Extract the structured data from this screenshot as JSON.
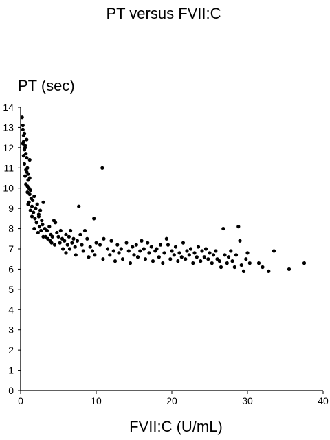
{
  "chart_data": {
    "type": "scatter",
    "title": "PT versus FVII:C",
    "xlabel": "FVII:C (U/mL)",
    "ylabel": "PT (sec)",
    "xlim": [
      0,
      40
    ],
    "ylim": [
      0,
      14
    ],
    "x_ticks": [
      "0",
      "10",
      "20",
      "30",
      "40"
    ],
    "y_ticks": [
      "0",
      "1",
      "2",
      "3",
      "4",
      "5",
      "6",
      "7",
      "8",
      "9",
      "10",
      "11",
      "12",
      "13",
      "14"
    ],
    "grid": false,
    "marker_color": "#000000",
    "series": [
      {
        "points": [
          [
            0.2,
            13.5
          ],
          [
            0.3,
            13.1
          ],
          [
            0.3,
            12.9
          ],
          [
            0.4,
            12.6
          ],
          [
            0.5,
            12.7
          ],
          [
            0.4,
            12.3
          ],
          [
            0.6,
            12.1
          ],
          [
            0.5,
            11.9
          ],
          [
            0.7,
            11.7
          ],
          [
            0.8,
            11.5
          ],
          [
            0.5,
            11.2
          ],
          [
            0.9,
            11.0
          ],
          [
            0.8,
            10.8
          ],
          [
            0.6,
            10.6
          ],
          [
            1.0,
            10.4
          ],
          [
            0.7,
            10.2
          ],
          [
            1.1,
            10.0
          ],
          [
            0.9,
            9.8
          ],
          [
            1.2,
            9.7
          ],
          [
            1.4,
            9.5
          ],
          [
            0.6,
            12.0
          ],
          [
            0.3,
            12.2
          ],
          [
            0.4,
            11.6
          ],
          [
            0.7,
            10.9
          ],
          [
            1.0,
            10.7
          ],
          [
            1.2,
            10.5
          ],
          [
            0.9,
            10.1
          ],
          [
            1.3,
            9.9
          ],
          [
            1.1,
            9.3
          ],
          [
            1.5,
            9.1
          ],
          [
            1.0,
            9.2
          ],
          [
            1.6,
            9.4
          ],
          [
            1.8,
            9.6
          ],
          [
            1.3,
            8.9
          ],
          [
            1.7,
            8.8
          ],
          [
            2.0,
            9.0
          ],
          [
            1.5,
            8.6
          ],
          [
            2.2,
            9.2
          ],
          [
            1.9,
            8.5
          ],
          [
            2.4,
            8.7
          ],
          [
            2.6,
            8.9
          ],
          [
            2.1,
            8.3
          ],
          [
            2.8,
            8.4
          ],
          [
            3.0,
            9.3
          ],
          [
            2.5,
            8.1
          ],
          [
            1.8,
            8.0
          ],
          [
            2.3,
            7.8
          ],
          [
            2.9,
            8.2
          ],
          [
            3.2,
            8.0
          ],
          [
            3.5,
            7.9
          ],
          [
            3.8,
            8.1
          ],
          [
            4.0,
            7.7
          ],
          [
            3.3,
            7.6
          ],
          [
            2.7,
            7.9
          ],
          [
            4.2,
            7.6
          ],
          [
            4.4,
            8.4
          ],
          [
            4.6,
            8.3
          ],
          [
            3.6,
            7.5
          ],
          [
            3.9,
            7.4
          ],
          [
            4.1,
            7.3
          ],
          [
            4.8,
            7.8
          ],
          [
            5.0,
            7.6
          ],
          [
            4.5,
            7.2
          ],
          [
            5.3,
            7.9
          ],
          [
            5.5,
            7.5
          ],
          [
            5.2,
            7.3
          ],
          [
            5.8,
            7.4
          ],
          [
            6.0,
            7.7
          ],
          [
            6.2,
            7.2
          ],
          [
            5.6,
            7.0
          ],
          [
            6.4,
            7.6
          ],
          [
            6.6,
            7.9
          ],
          [
            6.8,
            7.3
          ],
          [
            7.0,
            7.5
          ],
          [
            6.5,
            7.0
          ],
          [
            7.2,
            7.1
          ],
          [
            6.0,
            6.8
          ],
          [
            7.5,
            7.4
          ],
          [
            7.7,
            9.1
          ],
          [
            7.9,
            7.7
          ],
          [
            8.1,
            7.2
          ],
          [
            8.3,
            6.9
          ],
          [
            7.3,
            6.7
          ],
          [
            8.5,
            7.9
          ],
          [
            8.8,
            7.5
          ],
          [
            9.0,
            6.6
          ],
          [
            9.2,
            7.1
          ],
          [
            9.5,
            6.9
          ],
          [
            9.7,
            8.5
          ],
          [
            10.0,
            7.3
          ],
          [
            9.8,
            6.7
          ],
          [
            10.5,
            7.2
          ],
          [
            10.8,
            11.0
          ],
          [
            10.9,
            6.5
          ],
          [
            11.0,
            7.5
          ],
          [
            11.5,
            7.0
          ],
          [
            11.8,
            6.7
          ],
          [
            12.0,
            7.4
          ],
          [
            12.3,
            6.9
          ],
          [
            12.5,
            6.4
          ],
          [
            12.8,
            7.2
          ],
          [
            13.0,
            6.8
          ],
          [
            13.3,
            7.0
          ],
          [
            13.5,
            6.5
          ],
          [
            14.0,
            7.3
          ],
          [
            14.3,
            6.9
          ],
          [
            14.5,
            6.3
          ],
          [
            14.8,
            7.1
          ],
          [
            15.0,
            6.7
          ],
          [
            15.3,
            7.2
          ],
          [
            15.5,
            6.6
          ],
          [
            15.8,
            6.9
          ],
          [
            16.0,
            7.4
          ],
          [
            16.3,
            7.0
          ],
          [
            16.5,
            6.5
          ],
          [
            16.8,
            7.3
          ],
          [
            17.0,
            6.8
          ],
          [
            17.3,
            7.1
          ],
          [
            17.5,
            6.4
          ],
          [
            17.8,
            6.9
          ],
          [
            18.0,
            7.0
          ],
          [
            18.3,
            6.6
          ],
          [
            18.5,
            7.2
          ],
          [
            18.8,
            6.3
          ],
          [
            19.0,
            6.8
          ],
          [
            19.3,
            7.5
          ],
          [
            19.5,
            7.2
          ],
          [
            19.8,
            6.5
          ],
          [
            20.0,
            6.9
          ],
          [
            20.3,
            6.7
          ],
          [
            20.5,
            7.1
          ],
          [
            20.8,
            6.4
          ],
          [
            21.0,
            6.8
          ],
          [
            21.3,
            6.6
          ],
          [
            21.5,
            7.3
          ],
          [
            21.8,
            6.5
          ],
          [
            22.0,
            6.9
          ],
          [
            22.3,
            6.7
          ],
          [
            22.5,
            7.0
          ],
          [
            22.8,
            6.3
          ],
          [
            23.0,
            6.8
          ],
          [
            23.3,
            6.6
          ],
          [
            23.5,
            7.1
          ],
          [
            23.8,
            6.4
          ],
          [
            24.0,
            6.9
          ],
          [
            24.3,
            6.6
          ],
          [
            24.5,
            7.0
          ],
          [
            24.8,
            6.5
          ],
          [
            25.0,
            6.8
          ],
          [
            25.3,
            6.3
          ],
          [
            25.5,
            6.7
          ],
          [
            25.8,
            6.9
          ],
          [
            26.0,
            6.5
          ],
          [
            26.3,
            6.4
          ],
          [
            26.5,
            6.1
          ],
          [
            26.8,
            8.0
          ],
          [
            27.0,
            6.7
          ],
          [
            27.3,
            6.3
          ],
          [
            27.5,
            6.6
          ],
          [
            27.8,
            6.9
          ],
          [
            28.0,
            6.4
          ],
          [
            28.3,
            6.1
          ],
          [
            28.5,
            6.7
          ],
          [
            28.8,
            8.1
          ],
          [
            29.0,
            7.4
          ],
          [
            29.2,
            6.2
          ],
          [
            29.5,
            5.9
          ],
          [
            29.8,
            6.5
          ],
          [
            30.0,
            6.8
          ],
          [
            30.3,
            6.3
          ],
          [
            31.5,
            6.3
          ],
          [
            32.0,
            6.1
          ],
          [
            32.8,
            5.9
          ],
          [
            33.5,
            6.9
          ],
          [
            35.5,
            6.0
          ],
          [
            37.5,
            6.3
          ],
          [
            1.2,
            11.4
          ],
          [
            0.8,
            12.4
          ],
          [
            2.4,
            8.6
          ],
          [
            3.0,
            7.6
          ]
        ]
      }
    ]
  }
}
